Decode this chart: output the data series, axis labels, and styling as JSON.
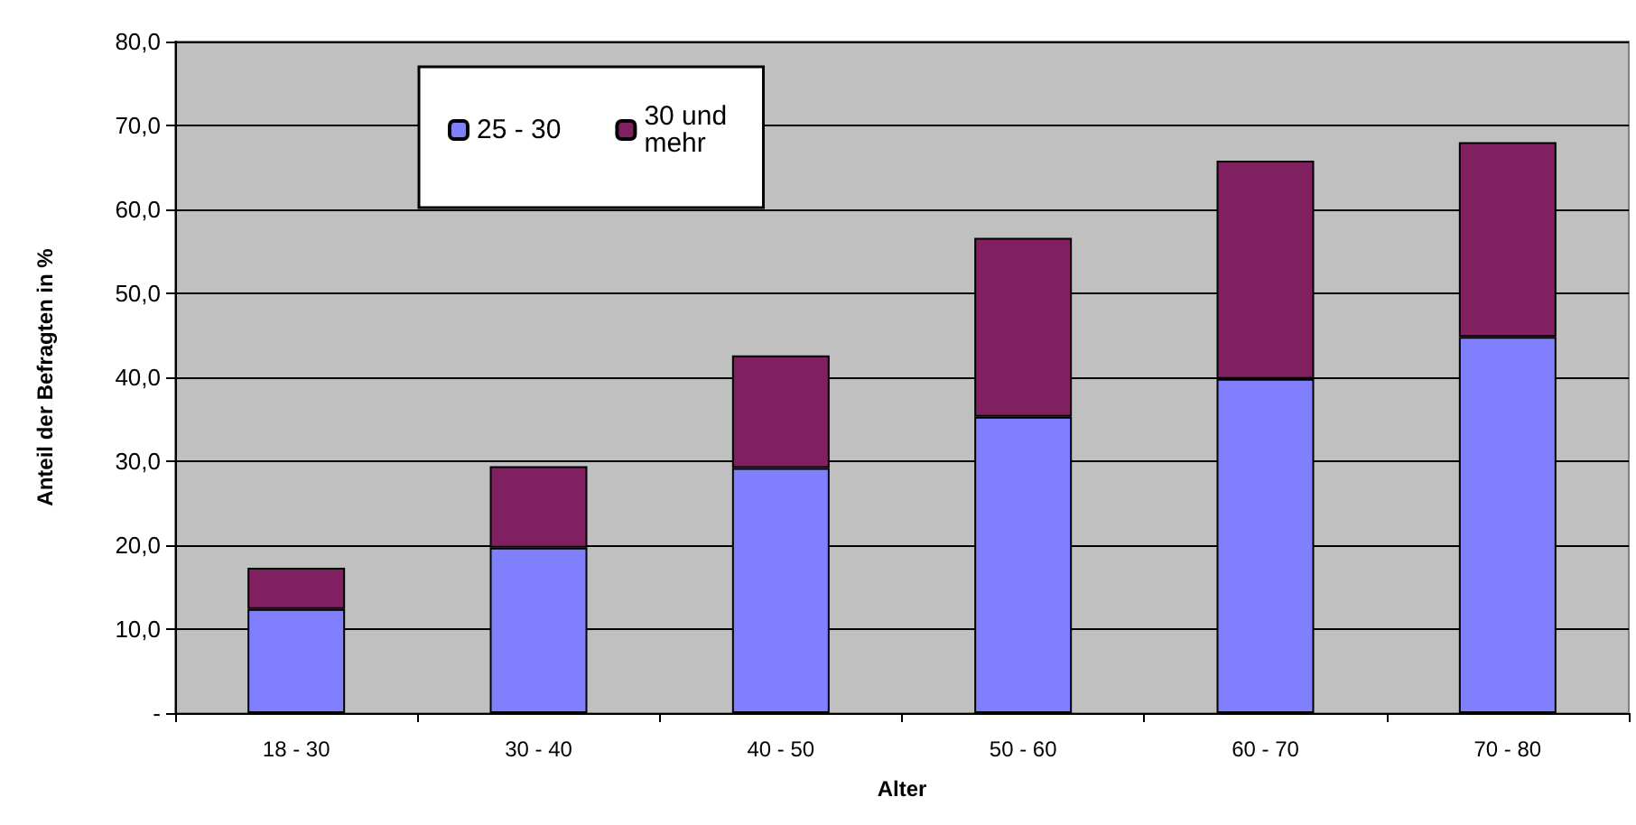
{
  "chart_data": {
    "type": "bar",
    "stacked": true,
    "xlabel": "Alter",
    "ylabel": "Anteil der Befragten in %",
    "categories": [
      "18 - 30",
      "30 - 40",
      "40 - 50",
      "50 - 60",
      "60 - 70",
      "70 - 80"
    ],
    "series": [
      {
        "name": "25 - 30",
        "color": "#8080ff",
        "values": [
          12.4,
          19.7,
          29.2,
          35.3,
          39.8,
          44.8
        ]
      },
      {
        "name": "30 und mehr",
        "color": "#802060",
        "values": [
          4.9,
          9.7,
          13.4,
          21.3,
          26.0,
          23.2
        ]
      }
    ],
    "ylim": [
      0,
      80
    ],
    "yticks": [
      {
        "value": 0,
        "label": "-"
      },
      {
        "value": 10,
        "label": "10,0"
      },
      {
        "value": 20,
        "label": "20,0"
      },
      {
        "value": 30,
        "label": "30,0"
      },
      {
        "value": 40,
        "label": "40,0"
      },
      {
        "value": 50,
        "label": "50,0"
      },
      {
        "value": 60,
        "label": "60,0"
      },
      {
        "value": 70,
        "label": "70,0"
      },
      {
        "value": 80,
        "label": "80,0"
      }
    ],
    "grid": "y",
    "legend": "top left"
  }
}
